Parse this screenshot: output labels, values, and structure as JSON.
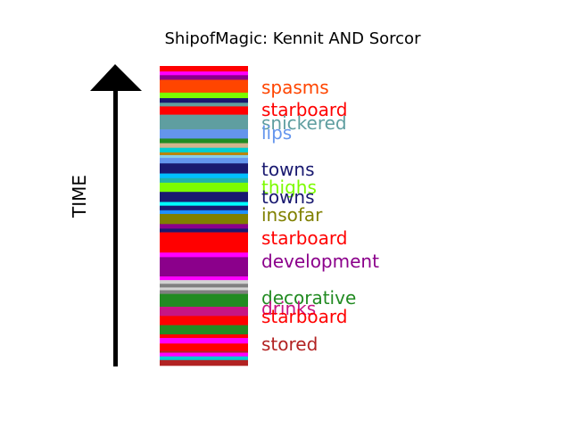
{
  "chart_data": {
    "type": "bar",
    "title": "ShipofMagic: Kennit AND Sorcor",
    "ylabel": "TIME",
    "stripes": [
      {
        "color": "#ff0000",
        "height": 6
      },
      {
        "color": "#ff00ff",
        "height": 4
      },
      {
        "color": "#8b008b",
        "height": 5
      },
      {
        "color": "#ff4500",
        "height": 14
      },
      {
        "color": "#7cfc00",
        "height": 6
      },
      {
        "color": "#191970",
        "height": 5
      },
      {
        "color": "#5f9ea0",
        "height": 4
      },
      {
        "color": "#ff0000",
        "height": 9
      },
      {
        "color": "#5f9ea0",
        "height": 16
      },
      {
        "color": "#6495ed",
        "height": 10
      },
      {
        "color": "#228b22",
        "height": 5
      },
      {
        "color": "#d2b48c",
        "height": 5
      },
      {
        "color": "#00ced1",
        "height": 5
      },
      {
        "color": "#b8860b",
        "height": 3
      },
      {
        "color": "#87ceeb",
        "height": 3
      },
      {
        "color": "#6495ed",
        "height": 6
      },
      {
        "color": "#191970",
        "height": 11
      },
      {
        "color": "#00bfff",
        "height": 5
      },
      {
        "color": "#20b2aa",
        "height": 5
      },
      {
        "color": "#7cfc00",
        "height": 10
      },
      {
        "color": "#191970",
        "height": 11
      },
      {
        "color": "#00ffff",
        "height": 4
      },
      {
        "color": "#191970",
        "height": 5
      },
      {
        "color": "#1e90ff",
        "height": 4
      },
      {
        "color": "#808000",
        "height": 11
      },
      {
        "color": "#8b008b",
        "height": 5
      },
      {
        "color": "#191970",
        "height": 4
      },
      {
        "color": "#ff0000",
        "height": 22
      },
      {
        "color": "#ff00ff",
        "height": 5
      },
      {
        "color": "#8b008b",
        "height": 21
      },
      {
        "color": "#ff00ff",
        "height": 4
      },
      {
        "color": "#d3d3d3",
        "height": 4
      },
      {
        "color": "#808080",
        "height": 4
      },
      {
        "color": "#d3d3d3",
        "height": 3
      },
      {
        "color": "#808080",
        "height": 4
      },
      {
        "color": "#228b22",
        "height": 14
      },
      {
        "color": "#c71585",
        "height": 10
      },
      {
        "color": "#ff0000",
        "height": 10
      },
      {
        "color": "#228b22",
        "height": 10
      },
      {
        "color": "#ff0000",
        "height": 4
      },
      {
        "color": "#ff00ff",
        "height": 6
      },
      {
        "color": "#ff0000",
        "height": 8
      },
      {
        "color": "#b22222",
        "height": 2
      },
      {
        "color": "#ff00ff",
        "height": 4
      },
      {
        "color": "#00ced1",
        "height": 4
      },
      {
        "color": "#b22222",
        "height": 6
      }
    ],
    "labels": [
      {
        "text": "spasms",
        "color": "#ff4500"
      },
      {
        "text": "starboard",
        "color": "#ff0000"
      },
      {
        "text": "snickered",
        "color": "#5f9ea0"
      },
      {
        "text": "lips",
        "color": "#6495ed"
      },
      {
        "text": "towns",
        "color": "#191970"
      },
      {
        "text": "thighs",
        "color": "#7cfc00"
      },
      {
        "text": "towns",
        "color": "#191970"
      },
      {
        "text": "insofar",
        "color": "#808000"
      },
      {
        "text": "starboard",
        "color": "#ff0000"
      },
      {
        "text": "development",
        "color": "#8b008b"
      },
      {
        "text": "decorative",
        "color": "#228b22"
      },
      {
        "text": "drinks",
        "color": "#c71585"
      },
      {
        "text": "starboard",
        "color": "#ff0000"
      },
      {
        "text": "stored",
        "color": "#b22222"
      }
    ]
  }
}
